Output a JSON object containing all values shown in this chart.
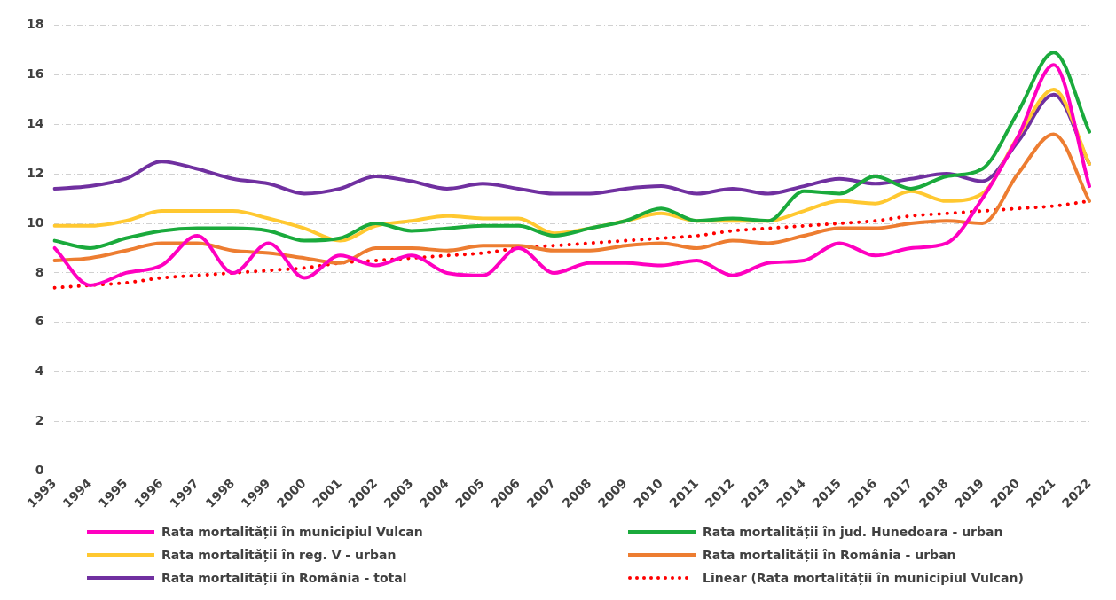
{
  "chart_data": {
    "type": "line",
    "categories": [
      "1993",
      "1994",
      "1995",
      "1996",
      "1997",
      "1998",
      "1999",
      "2000",
      "2001",
      "2002",
      "2003",
      "2004",
      "2005",
      "2006",
      "2007",
      "2008",
      "2009",
      "2010",
      "2011",
      "2012",
      "2013",
      "2014",
      "2015",
      "2016",
      "2017",
      "2018",
      "2019",
      "2020",
      "2021",
      "2022"
    ],
    "series": [
      {
        "name": "Rata mortalității în municipiul Vulcan",
        "color": "#ff00c0",
        "values": [
          9.0,
          7.5,
          8.0,
          8.3,
          9.5,
          8.0,
          9.2,
          7.8,
          8.7,
          8.3,
          8.7,
          8.0,
          7.9,
          9.0,
          8.0,
          8.4,
          8.4,
          8.3,
          8.5,
          7.9,
          8.4,
          8.5,
          9.2,
          8.7,
          9.0,
          9.2,
          11.0,
          13.5,
          16.4,
          11.5
        ]
      },
      {
        "name": "Rata mortalității în jud. Hunedoara - urban",
        "color": "#1aaa3c",
        "values": [
          9.3,
          9.0,
          9.4,
          9.7,
          9.8,
          9.8,
          9.7,
          9.3,
          9.4,
          10.0,
          9.7,
          9.8,
          9.9,
          9.9,
          9.5,
          9.8,
          10.1,
          10.6,
          10.1,
          10.2,
          10.1,
          11.3,
          11.2,
          11.9,
          11.4,
          11.9,
          12.2,
          14.5,
          16.9,
          13.7
        ]
      },
      {
        "name": "Rata mortalității în reg. V - urban",
        "color": "#ffc830",
        "values": [
          9.9,
          9.9,
          10.1,
          10.5,
          10.5,
          10.5,
          10.2,
          9.8,
          9.3,
          9.9,
          10.1,
          10.3,
          10.2,
          10.2,
          9.6,
          9.8,
          10.1,
          10.4,
          10.1,
          10.1,
          10.1,
          10.5,
          10.9,
          10.8,
          11.3,
          10.9,
          11.2,
          13.5,
          15.4,
          12.4
        ]
      },
      {
        "name": "Rata mortalității în România - urban",
        "color": "#ed7d31",
        "values": [
          8.5,
          8.6,
          8.9,
          9.2,
          9.2,
          8.9,
          8.8,
          8.6,
          8.4,
          9.0,
          9.0,
          8.9,
          9.1,
          9.1,
          8.9,
          8.9,
          9.1,
          9.2,
          9.0,
          9.3,
          9.2,
          9.5,
          9.8,
          9.8,
          10.0,
          10.1,
          10.0,
          12.0,
          13.6,
          10.9
        ]
      },
      {
        "name": "Rata mortalității în România - total",
        "color": "#7030a0",
        "values": [
          11.4,
          11.5,
          11.8,
          12.5,
          12.2,
          11.8,
          11.6,
          11.2,
          11.4,
          11.9,
          11.7,
          11.4,
          11.6,
          11.4,
          11.2,
          11.2,
          11.4,
          11.5,
          11.2,
          11.4,
          11.2,
          11.5,
          11.8,
          11.6,
          11.8,
          12.0,
          11.7,
          13.3,
          15.2,
          12.4
        ]
      },
      {
        "name": "Linear (Rata mortalității în municipiul Vulcan)",
        "color": "#ff0000",
        "line_style": "dotted",
        "values": [
          7.4,
          7.5,
          7.6,
          7.8,
          7.9,
          8.0,
          8.1,
          8.2,
          8.4,
          8.5,
          8.6,
          8.7,
          8.8,
          9.0,
          9.1,
          9.2,
          9.3,
          9.4,
          9.5,
          9.7,
          9.8,
          9.9,
          10.0,
          10.1,
          10.3,
          10.4,
          10.5,
          10.6,
          10.7,
          10.9
        ]
      }
    ],
    "ylim": [
      0,
      18
    ],
    "yticks": [
      0,
      2,
      4,
      6,
      8,
      10,
      12,
      14,
      16,
      18
    ],
    "grid": "y",
    "legend": "bottom",
    "marker": "none"
  }
}
